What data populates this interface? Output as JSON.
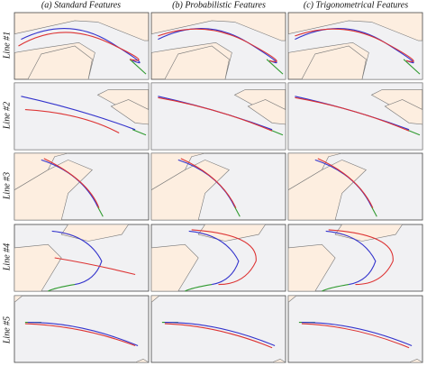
{
  "columns": [
    "(a) Standard Features",
    "(b) Probabilistic Features",
    "(c) Trigonometrical Features"
  ],
  "rows": [
    "Line #1",
    "Line #2",
    "Line #3",
    "Line #4",
    "Line #5"
  ]
}
